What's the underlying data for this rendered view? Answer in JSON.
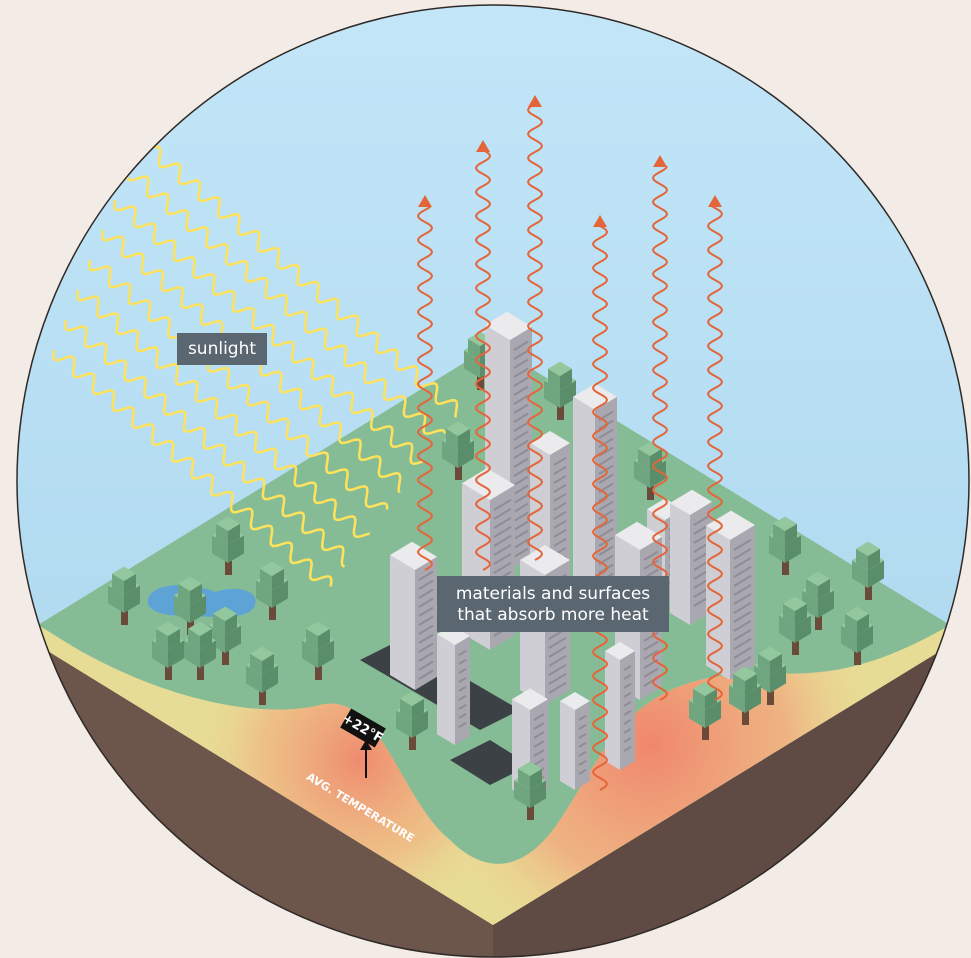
{
  "labels": {
    "sunlight": "sunlight",
    "heat_absorption": [
      "materials and surfaces",
      "that absorb more heat"
    ],
    "temperature_change": "+22°F",
    "temperature_label": "AVG. TEMPERATURE"
  }
}
